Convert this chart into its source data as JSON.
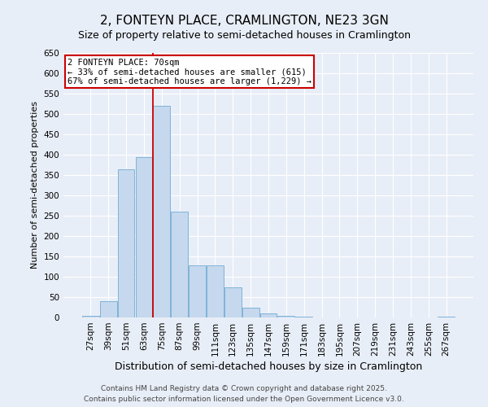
{
  "title": "2, FONTEYN PLACE, CRAMLINGTON, NE23 3GN",
  "subtitle": "Size of property relative to semi-detached houses in Cramlington",
  "xlabel": "Distribution of semi-detached houses by size in Cramlington",
  "ylabel": "Number of semi-detached properties",
  "bar_color": "#c5d8ed",
  "bar_edge_color": "#7fb3d9",
  "background_color": "#e8eef7",
  "grid_color": "#ffffff",
  "categories": [
    "27sqm",
    "39sqm",
    "51sqm",
    "63sqm",
    "75sqm",
    "87sqm",
    "99sqm",
    "111sqm",
    "123sqm",
    "135sqm",
    "147sqm",
    "159sqm",
    "171sqm",
    "183sqm",
    "195sqm",
    "207sqm",
    "219sqm",
    "231sqm",
    "243sqm",
    "255sqm",
    "267sqm"
  ],
  "values": [
    5,
    40,
    365,
    395,
    520,
    260,
    128,
    128,
    75,
    25,
    10,
    5,
    2,
    1,
    1,
    0,
    0,
    0,
    0,
    0,
    2
  ],
  "property_label": "2 FONTEYN PLACE: 70sqm",
  "pct_smaller": 33,
  "count_smaller": 615,
  "pct_larger": 67,
  "count_larger": 1229,
  "vline_pos": 3.5,
  "ylim": [
    0,
    650
  ],
  "yticks": [
    0,
    50,
    100,
    150,
    200,
    250,
    300,
    350,
    400,
    450,
    500,
    550,
    600,
    650
  ],
  "annotation_box_color": "#cc0000",
  "vline_color": "#cc0000",
  "footer": "Contains HM Land Registry data © Crown copyright and database right 2025.\nContains public sector information licensed under the Open Government Licence v3.0.",
  "title_fontsize": 11,
  "subtitle_fontsize": 9,
  "xlabel_fontsize": 9,
  "ylabel_fontsize": 8,
  "tick_fontsize": 7.5,
  "annotation_fontsize": 7.5,
  "footer_fontsize": 6.5
}
